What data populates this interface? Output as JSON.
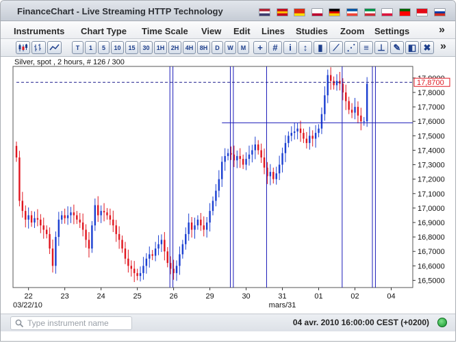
{
  "window": {
    "title": "FinanceChart - Live Streaming HTTP Technology"
  },
  "languages": [
    {
      "name": "us-flag-icon",
      "colors": [
        "#b22234",
        "#ffffff",
        "#3c3b6e"
      ]
    },
    {
      "name": "es-flag-icon",
      "colors": [
        "#c60b1e",
        "#ffc400",
        "#c60b1e"
      ]
    },
    {
      "name": "cn-flag-icon",
      "colors": [
        "#de2910",
        "#de2910",
        "#ffde00"
      ]
    },
    {
      "name": "jp-flag-icon",
      "colors": [
        "#ffffff",
        "#ffffff",
        "#bc002d"
      ]
    },
    {
      "name": "de-flag-icon",
      "colors": [
        "#000000",
        "#dd0000",
        "#ffce00"
      ]
    },
    {
      "name": "fr-flag-icon",
      "colors": [
        "#0055a4",
        "#ffffff",
        "#ef4135"
      ]
    },
    {
      "name": "it-flag-icon",
      "colors": [
        "#009246",
        "#ffffff",
        "#ce2b37"
      ]
    },
    {
      "name": "pl-flag-icon",
      "colors": [
        "#ffffff",
        "#ffffff",
        "#dc143c"
      ]
    },
    {
      "name": "pt-flag-icon",
      "colors": [
        "#006600",
        "#ff0000",
        "#ff0000"
      ]
    },
    {
      "name": "tr-flag-icon",
      "colors": [
        "#e30a17",
        "#e30a17",
        "#ffffff"
      ]
    },
    {
      "name": "ru-flag-icon",
      "colors": [
        "#ffffff",
        "#0039a6",
        "#d52b1e"
      ]
    }
  ],
  "menu": {
    "items": [
      "Instruments",
      "Chart Type",
      "Time Scale",
      "View",
      "Edit",
      "Lines",
      "Studies",
      "Zoom",
      "Settings"
    ],
    "more": "»"
  },
  "toolbar": {
    "chart_types": [
      {
        "name": "candlestick-chart-icon"
      },
      {
        "name": "bar-chart-icon"
      },
      {
        "name": "line-chart-icon"
      }
    ],
    "timescales": [
      "T",
      "1",
      "5",
      "10",
      "15",
      "30",
      "1H",
      "2H",
      "4H",
      "8H",
      "D",
      "W",
      "M"
    ],
    "tools_a": [
      {
        "name": "crosshair-icon",
        "glyph": "+"
      },
      {
        "name": "grid-icon",
        "glyph": "#"
      },
      {
        "name": "info-icon",
        "glyph": "i"
      },
      {
        "name": "indicator-icon",
        "glyph": "↕"
      },
      {
        "name": "volume-icon",
        "glyph": "▮"
      }
    ],
    "tools_b": [
      {
        "name": "trendline-icon",
        "glyph": "⟋"
      },
      {
        "name": "channel-icon",
        "glyph": "⋰"
      },
      {
        "name": "fibonacci-icon",
        "glyph": "≡"
      },
      {
        "name": "level-line-icon",
        "glyph": "⊥"
      }
    ],
    "tools_c": [
      {
        "name": "draw-line-icon",
        "glyph": "✎"
      },
      {
        "name": "eraser-icon",
        "glyph": "◧"
      },
      {
        "name": "pin-icon",
        "glyph": "✖"
      }
    ],
    "more": "»",
    "colors": {
      "accent": "#1e3f8c"
    }
  },
  "chart": {
    "caption": "Silver, spot , 2 hours, # 126 / 300",
    "last_price_label": "17,8700",
    "date_start_label": "03/22/10",
    "month_label": "mars/31"
  },
  "chart_data": {
    "type": "candlestick",
    "title": "Silver, spot , 2 hours, # 126 / 300",
    "xlabel": "",
    "ylabel": "",
    "ylim": [
      16.45,
      17.98
    ],
    "yticks": [
      16.5,
      16.6,
      16.7,
      16.8,
      16.9,
      17.0,
      17.1,
      17.2,
      17.3,
      17.4,
      17.5,
      17.6,
      17.7,
      17.8,
      17.9
    ],
    "ytick_labels": [
      "16,5000",
      "16,6000",
      "16,7000",
      "16,8000",
      "16,9000",
      "17,0000",
      "17,1000",
      "17,2000",
      "17,3000",
      "17,4000",
      "17,5000",
      "17,6000",
      "17,7000",
      "17,8000",
      "17,9000"
    ],
    "xticks": [
      {
        "label": "22",
        "index": 4
      },
      {
        "label": "23",
        "index": 16
      },
      {
        "label": "24",
        "index": 28
      },
      {
        "label": "25",
        "index": 40
      },
      {
        "label": "26",
        "index": 52
      },
      {
        "label": "29",
        "index": 64
      },
      {
        "label": "30",
        "index": 76
      },
      {
        "label": "31",
        "index": 88
      },
      {
        "label": "01",
        "index": 100
      },
      {
        "label": "02",
        "index": 112
      },
      {
        "label": "04",
        "index": 124
      }
    ],
    "x_index_max": 130,
    "up_color": "#1b3fd1",
    "down_color": "#e0161f",
    "last_price": 17.87,
    "horizontal_lines": [
      17.87,
      17.59
    ],
    "vertical_lines": [
      51,
      52,
      71,
      72,
      83,
      108,
      118,
      119
    ],
    "closes": [
      17.35,
      17.05,
      16.98,
      16.92,
      16.95,
      16.9,
      16.93,
      16.92,
      16.88,
      16.85,
      16.82,
      16.72,
      16.6,
      16.8,
      16.92,
      16.95,
      16.93,
      16.95,
      16.97,
      16.95,
      16.92,
      16.9,
      16.85,
      16.78,
      16.72,
      16.88,
      17.02,
      16.95,
      16.98,
      16.97,
      16.95,
      16.92,
      16.88,
      16.82,
      16.78,
      16.72,
      16.65,
      16.6,
      16.58,
      16.55,
      16.53,
      16.55,
      16.6,
      16.65,
      16.68,
      16.67,
      16.72,
      16.75,
      16.78,
      16.7,
      16.62,
      16.58,
      16.55,
      16.6,
      16.68,
      16.75,
      16.82,
      16.9,
      16.85,
      16.88,
      16.92,
      16.88,
      16.85,
      16.9,
      16.98,
      17.05,
      17.12,
      17.2,
      17.32,
      17.36,
      17.38,
      17.37,
      17.33,
      17.36,
      17.34,
      17.3,
      17.34,
      17.37,
      17.4,
      17.44,
      17.4,
      17.35,
      17.28,
      17.22,
      17.25,
      17.2,
      17.24,
      17.3,
      17.38,
      17.45,
      17.5,
      17.52,
      17.53,
      17.55,
      17.52,
      17.48,
      17.45,
      17.5,
      17.48,
      17.52,
      17.55,
      17.65,
      17.78,
      17.92,
      17.88,
      17.85,
      17.88,
      17.86,
      17.8,
      17.74,
      17.68,
      17.66,
      17.7,
      17.64,
      17.6,
      17.6,
      17.86
    ]
  },
  "status": {
    "search_placeholder": "Type instrument name",
    "timestamp": "04 avr. 2010 16:00:00  CEST (+0200)"
  }
}
